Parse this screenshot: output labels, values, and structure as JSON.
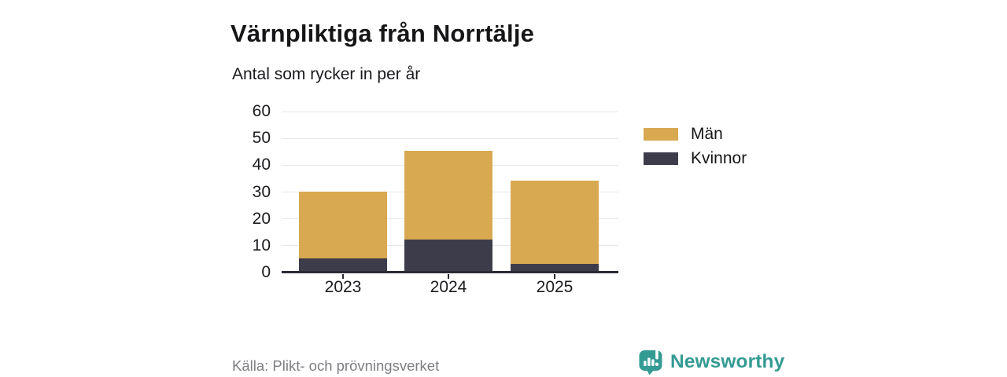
{
  "title": "Värnpliktiga från Norrtälje",
  "subtitle": "Antal som rycker in per år",
  "source": "Källa: Plikt- och prövningsverket",
  "brand": {
    "name": "Newsworthy",
    "color": "#349b93",
    "icon": "newsworthy-speech-bubble-barchart-icon"
  },
  "colors": {
    "men": "#d8a951",
    "women": "#3d3c4a",
    "grid": "#e7e7ea",
    "axis": "#2b2b35"
  },
  "legend": [
    {
      "label": "Män",
      "color": "#d8a951"
    },
    {
      "label": "Kvinnor",
      "color": "#3d3c4a"
    }
  ],
  "chart_data": {
    "type": "bar",
    "stacked": true,
    "title": "Värnpliktiga från Norrtälje",
    "subtitle": "Antal som rycker in per år",
    "xlabel": "",
    "ylabel": "Antal som rycker in per år",
    "categories": [
      "2023",
      "2024",
      "2025"
    ],
    "series": [
      {
        "name": "Kvinnor",
        "color": "#3d3c4a",
        "values": [
          5,
          12,
          3
        ]
      },
      {
        "name": "Män",
        "color": "#d8a951",
        "values": [
          25,
          33,
          31
        ]
      }
    ],
    "totals": [
      30,
      45,
      34
    ],
    "ylim": [
      0,
      60
    ],
    "yticks": [
      0,
      10,
      20,
      30,
      40,
      50,
      60
    ],
    "grid": "horizontal",
    "legend_position": "right"
  }
}
